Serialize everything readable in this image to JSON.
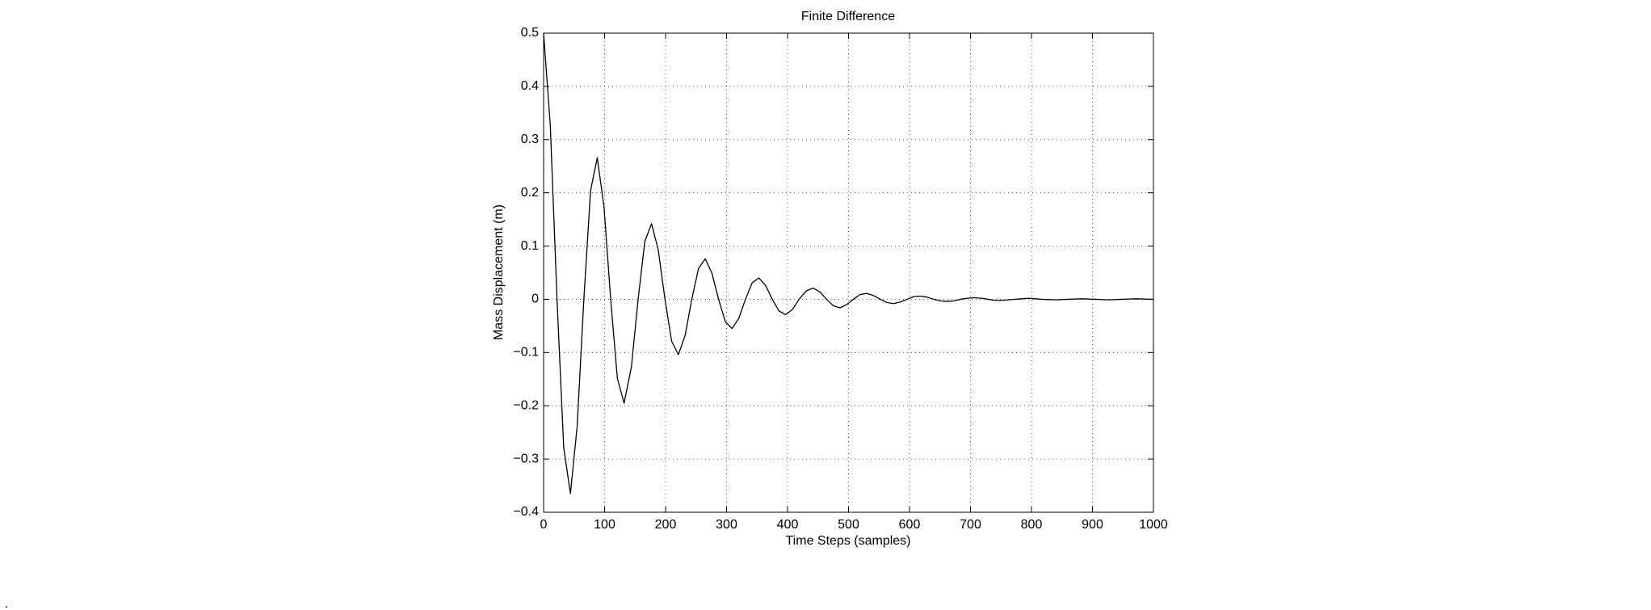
{
  "chart_data": {
    "type": "line",
    "title": "Finite Difference",
    "xlabel": "Time Steps (samples)",
    "ylabel": "Mass Displacement (m)",
    "stray_mark": ".",
    "x": [
      0,
      11,
      22,
      33,
      44,
      55,
      66,
      77,
      88,
      99,
      110,
      121,
      132,
      144,
      155,
      166,
      177,
      188,
      199,
      210,
      221,
      232,
      243,
      254,
      265,
      276,
      287,
      298,
      309,
      320,
      331,
      342,
      353,
      364,
      375,
      386,
      397,
      408,
      419,
      431,
      442,
      453,
      464,
      475,
      486,
      497,
      508,
      519,
      530,
      541,
      552,
      563,
      574,
      585,
      596,
      607,
      618,
      629,
      640,
      651,
      662,
      673,
      684,
      695,
      706,
      718,
      729,
      740,
      751,
      762,
      773,
      784,
      795,
      806,
      817,
      839,
      861,
      883,
      905,
      927,
      949,
      972,
      994,
      1000
    ],
    "series": [
      {
        "name": "Displacement",
        "color": "#000000",
        "values": [
          0.5,
          0.327,
          0,
          -0.279,
          -0.365,
          -0.239,
          0,
          0.204,
          0.266,
          0.174,
          0,
          -0.149,
          -0.195,
          -0.127,
          0,
          0.109,
          0.142,
          0.093,
          0,
          -0.079,
          -0.104,
          -0.068,
          0,
          0.058,
          0.076,
          0.049,
          0,
          -0.042,
          -0.055,
          -0.036,
          0,
          0.031,
          0.04,
          0.026,
          0,
          -0.022,
          -0.029,
          -0.019,
          0,
          0.016,
          0.021,
          0.014,
          0,
          -0.012,
          -0.016,
          -0.01,
          0,
          0.009,
          0.011,
          0.007,
          0,
          -0.006,
          -0.008,
          -0.005,
          0,
          0.005,
          0.006,
          0.004,
          0,
          -0.003,
          -0.004,
          -0.003,
          0,
          0.002,
          0.003,
          0.002,
          0,
          -0.002,
          -0.002,
          -0.001,
          0,
          0.001,
          0.002,
          0.001,
          0,
          -0.001,
          0,
          0.001,
          0,
          -0.001,
          0,
          0.001,
          0,
          0
        ]
      }
    ],
    "xlim": [
      0,
      1000
    ],
    "xticks": [
      0,
      100,
      200,
      300,
      400,
      500,
      600,
      700,
      800,
      900,
      1000
    ],
    "ylim": [
      -0.4,
      0.5
    ],
    "yticks": [
      {
        "value": -0.4,
        "label": "−0.4"
      },
      {
        "value": -0.3,
        "label": "−0.3"
      },
      {
        "value": -0.2,
        "label": "−0.2"
      },
      {
        "value": -0.1,
        "label": "−0.1"
      },
      0,
      0.1,
      0.2,
      0.3,
      0.4,
      0.5
    ],
    "grid": true
  }
}
